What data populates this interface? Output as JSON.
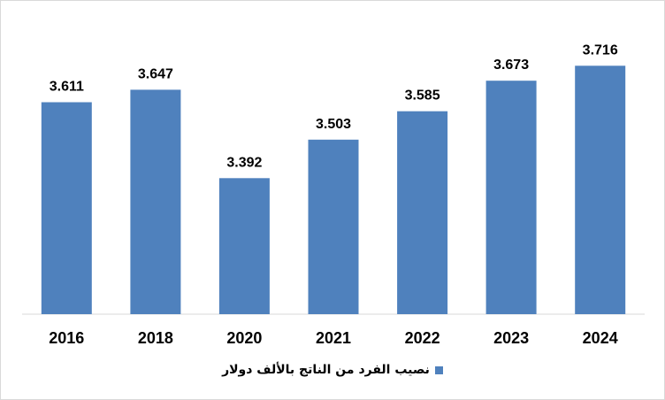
{
  "chart_data": {
    "type": "bar",
    "categories": [
      "2016",
      "2018",
      "2020",
      "2021",
      "2022",
      "2023",
      "2024"
    ],
    "series": [
      {
        "name": "نصيب الفرد من الناتج بالألف دولار",
        "values": [
          3.611,
          3.647,
          3.392,
          3.503,
          3.585,
          3.673,
          3.716
        ],
        "labels": [
          "3.611",
          "3.647",
          "3.392",
          "3.503",
          "3.585",
          "3.673",
          "3.716"
        ]
      }
    ],
    "title": "",
    "xlabel": "",
    "ylabel": "",
    "ylim": [
      3.0,
      3.75
    ],
    "grid": false,
    "legend_position": "bottom",
    "colors": {
      "bar": "#4f81bd",
      "axis": "#d9d9d9"
    }
  }
}
